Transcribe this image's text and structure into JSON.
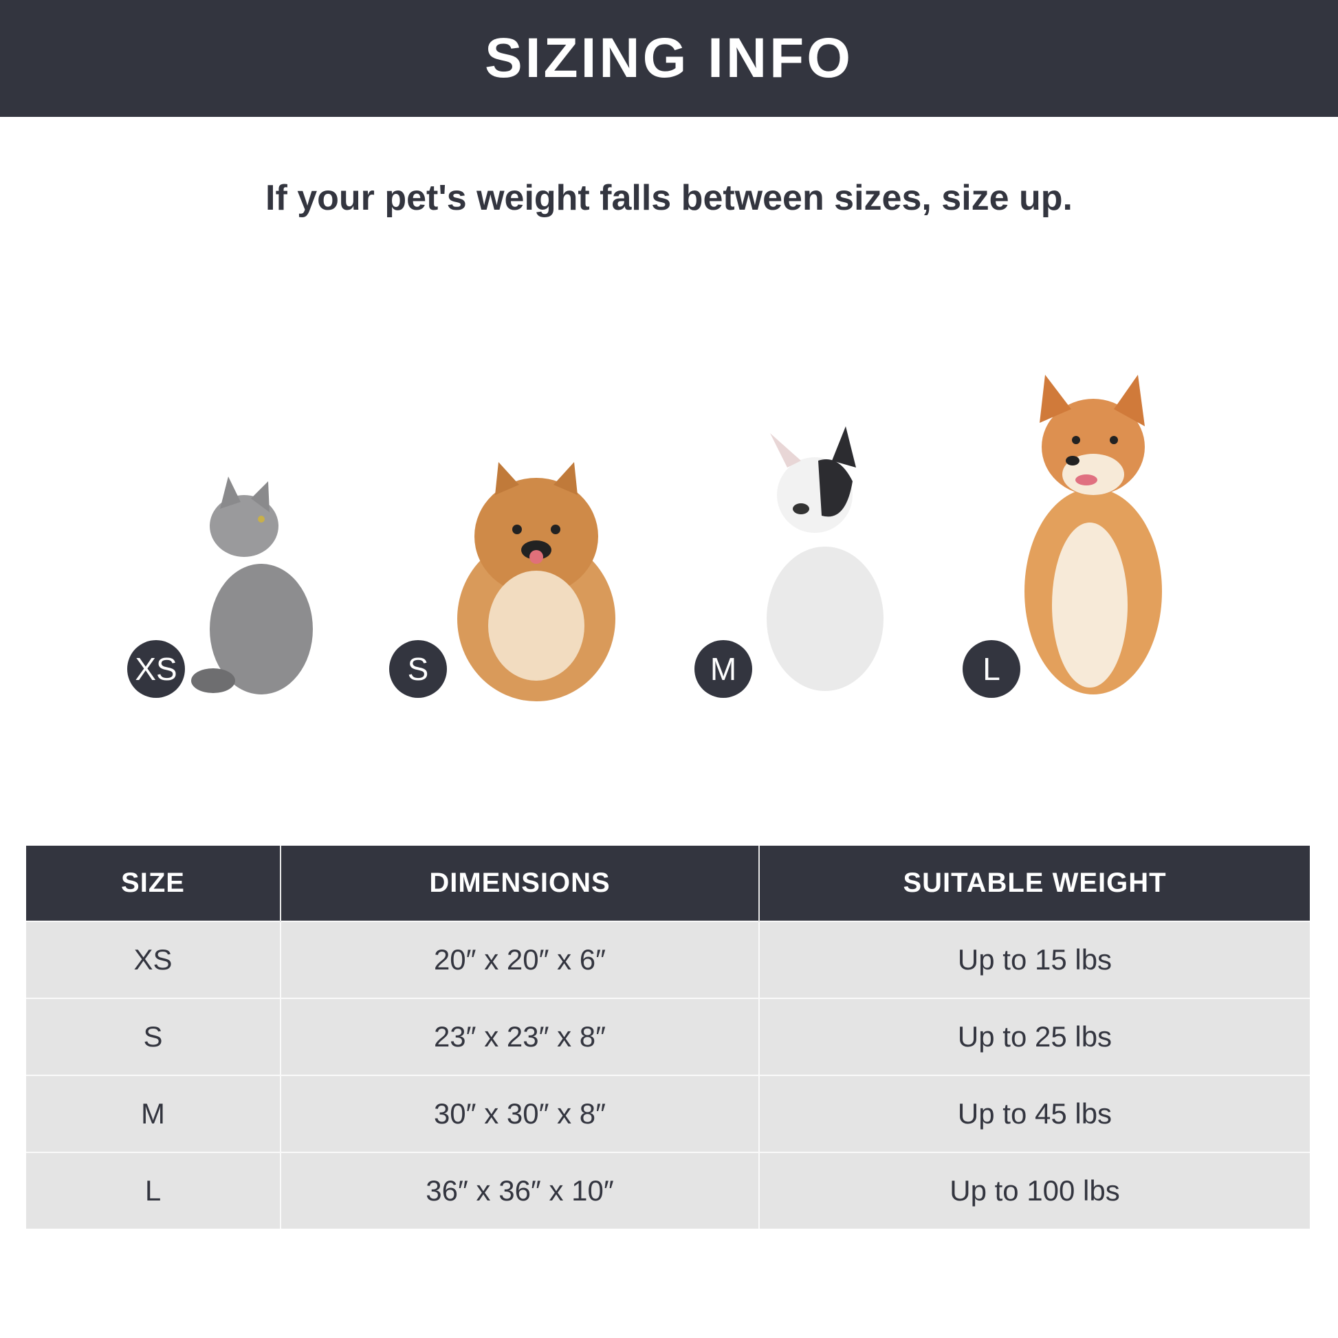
{
  "header": {
    "title": "SIZING INFO"
  },
  "subtitle": "If your pet's weight falls between sizes, size up.",
  "pets": [
    {
      "size": "XS",
      "animal": "cat-image"
    },
    {
      "size": "S",
      "animal": "pomeranian-image"
    },
    {
      "size": "M",
      "animal": "french-bulldog-image"
    },
    {
      "size": "L",
      "animal": "shiba-inu-image"
    }
  ],
  "table": {
    "headers": [
      "SIZE",
      "DIMENSIONS",
      "SUITABLE WEIGHT"
    ],
    "rows": [
      [
        "XS",
        "20″ x 20″ x 6″",
        "Up to 15 lbs"
      ],
      [
        "S",
        "23″ x 23″ x 8″",
        "Up to 25 lbs"
      ],
      [
        "M",
        "30″ x 30″ x 8″",
        "Up to 45 lbs"
      ],
      [
        "L",
        "36″ x 36″ x 10″",
        "Up to 100 lbs"
      ]
    ]
  },
  "colors": {
    "dark": "#33353f",
    "row": "#e4e4e4"
  }
}
